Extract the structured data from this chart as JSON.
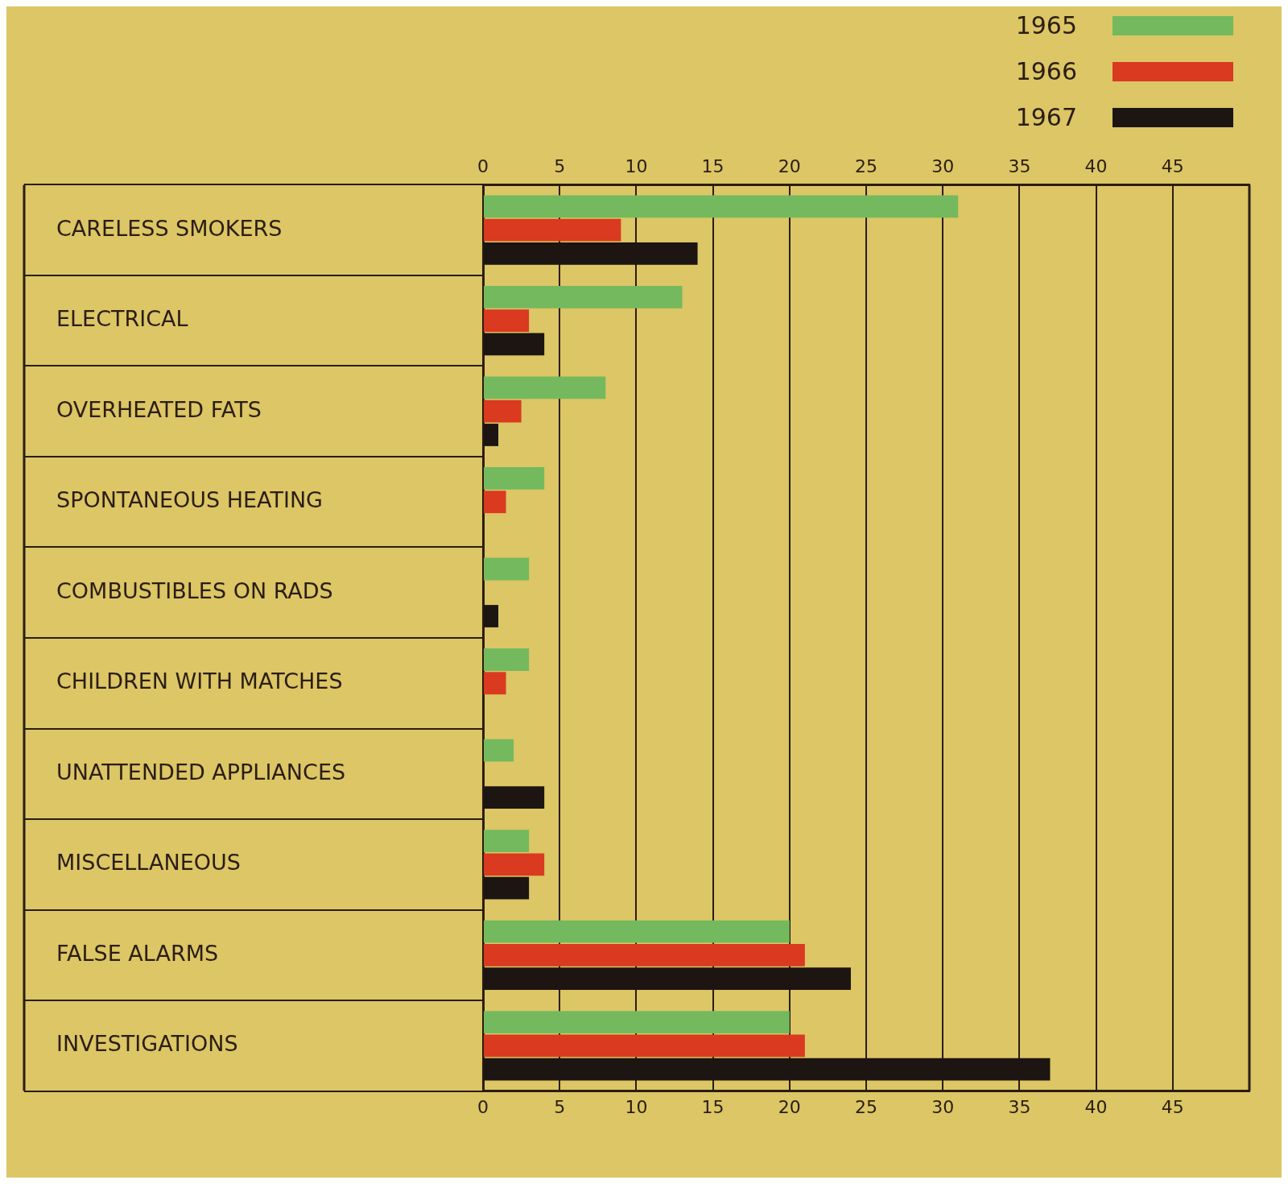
{
  "chart_data": {
    "type": "bar",
    "orientation": "horizontal",
    "categories": [
      "CARELESS SMOKERS",
      "ELECTRICAL",
      "OVERHEATED FATS",
      "SPONTANEOUS HEATING",
      "COMBUSTIBLES ON RADS",
      "CHILDREN WITH MATCHES",
      "UNATTENDED APPLIANCES",
      "MISCELLANEOUS",
      "FALSE ALARMS",
      "INVESTIGATIONS"
    ],
    "series": [
      {
        "name": "1965",
        "color": "#74b95e",
        "values": [
          31,
          13,
          8,
          4,
          3,
          3,
          2,
          3,
          20,
          20
        ]
      },
      {
        "name": "1966",
        "color": "#d93a20",
        "values": [
          9,
          3,
          2.5,
          1.5,
          null,
          1.5,
          null,
          4,
          21,
          21
        ]
      },
      {
        "name": "1967",
        "color": "#1c1512",
        "values": [
          14,
          4,
          1,
          null,
          1,
          null,
          4,
          3,
          24,
          37
        ]
      }
    ],
    "xlim": [
      0,
      50
    ],
    "xticks": [
      0,
      5,
      10,
      15,
      20,
      25,
      30,
      35,
      40,
      45
    ],
    "x2lim": [
      0,
      50
    ],
    "x2ticks": [
      0,
      5,
      10,
      15,
      20,
      25,
      30,
      35,
      40,
      45
    ],
    "grid": "x",
    "legend": "top right"
  }
}
